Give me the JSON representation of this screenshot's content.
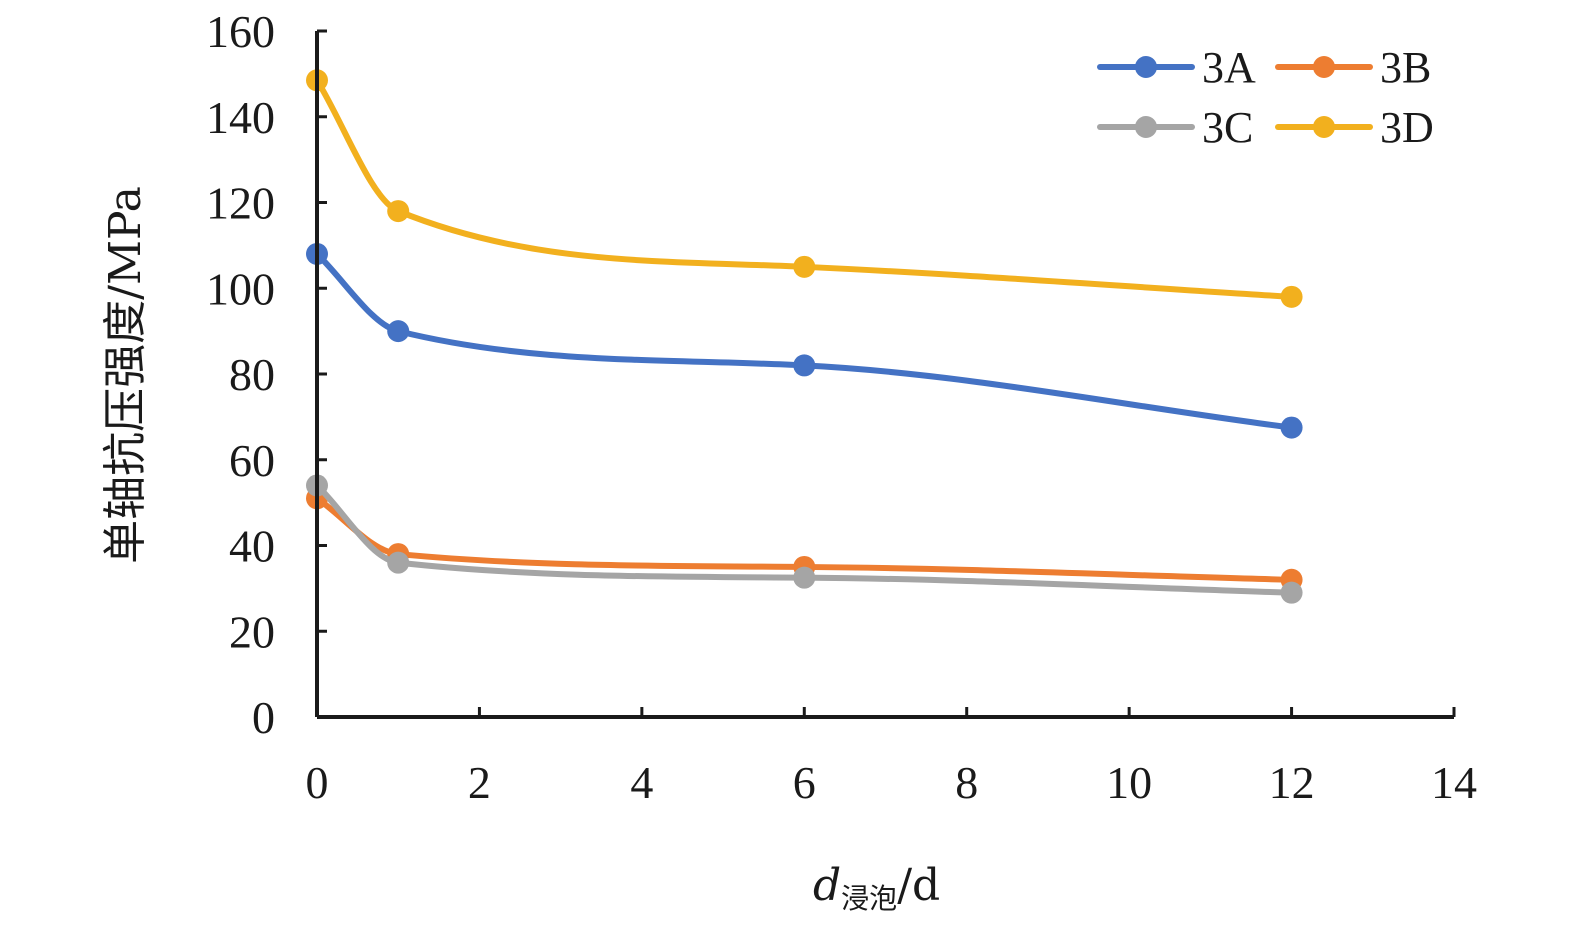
{
  "chart_data": {
    "type": "line",
    "xlabel": {
      "main": "d",
      "sub": "浸泡",
      "unit": "/d"
    },
    "ylabel": "单轴抗压强度/MPa",
    "xlim": [
      0,
      14
    ],
    "ylim": [
      0,
      160
    ],
    "xticks": [
      0,
      2,
      4,
      6,
      8,
      10,
      12,
      14
    ],
    "yticks": [
      0,
      20,
      40,
      60,
      80,
      100,
      120,
      140,
      160
    ],
    "grid": false,
    "legend_position": "top-right",
    "series": [
      {
        "name": "3A",
        "color": "#4472C4",
        "x": [
          0,
          1,
          6,
          12
        ],
        "y": [
          108,
          90,
          82,
          67.5
        ]
      },
      {
        "name": "3B",
        "color": "#ED7D31",
        "x": [
          0,
          1,
          6,
          12
        ],
        "y": [
          51,
          38,
          35,
          32
        ]
      },
      {
        "name": "3C",
        "color": "#A5A5A5",
        "x": [
          0,
          1,
          6,
          12
        ],
        "y": [
          54,
          36,
          32.5,
          29
        ]
      },
      {
        "name": "3D",
        "color": "#F2B01E",
        "x": [
          0,
          1,
          6,
          12
        ],
        "y": [
          148.5,
          118,
          105,
          98
        ]
      }
    ]
  }
}
